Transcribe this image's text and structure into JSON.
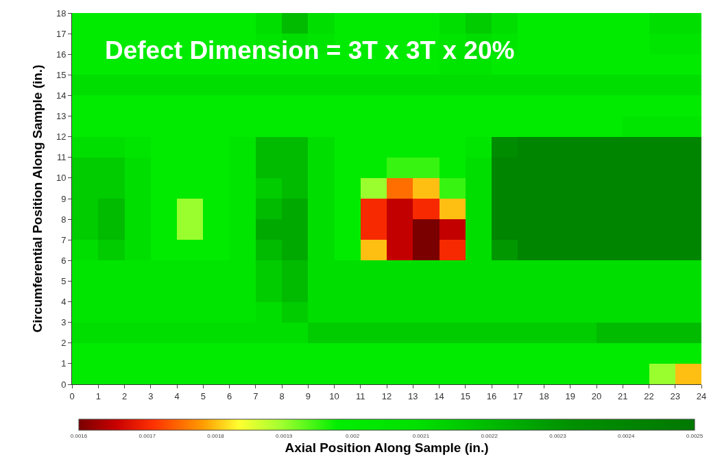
{
  "chart_data": {
    "type": "heatmap",
    "xlabel": "Axial Position Along Sample (in.)",
    "ylabel": "Circumferential Position Along Sample (in.)",
    "annotations": [
      "Defect Dimension = 3T x 3T x 20%"
    ],
    "xlim": [
      0,
      24
    ],
    "ylim": [
      0,
      18
    ],
    "xticks": [
      0,
      1,
      2,
      3,
      4,
      5,
      6,
      7,
      8,
      9,
      10,
      11,
      12,
      13,
      14,
      15,
      16,
      17,
      18,
      19,
      20,
      21,
      22,
      23,
      24
    ],
    "yticks": [
      0,
      1,
      2,
      3,
      4,
      5,
      6,
      7,
      8,
      9,
      10,
      11,
      12,
      13,
      14,
      15,
      16,
      17,
      18
    ],
    "clim": [
      0.0016,
      0.0025
    ],
    "cticks": [
      0.0016,
      0.0017,
      0.0018,
      0.0019,
      0.002,
      0.0021,
      0.0022,
      0.0023,
      0.0024,
      0.0025
    ],
    "cells": [
      [
        0.002,
        0.002,
        0.002,
        0.002,
        0.002,
        0.002,
        0.002,
        0.0021,
        0.0022,
        0.0021,
        0.002,
        0.002,
        0.002,
        0.002,
        0.0021,
        0.00215,
        0.0021,
        0.002,
        0.002,
        0.002,
        0.002,
        0.002,
        0.0021,
        0.0021
      ],
      [
        0.002,
        0.002,
        0.002,
        0.002,
        0.002,
        0.002,
        0.002,
        0.00205,
        0.0021,
        0.00205,
        0.002,
        0.002,
        0.002,
        0.002,
        0.00205,
        0.0021,
        0.00205,
        0.002,
        0.002,
        0.002,
        0.002,
        0.002,
        0.00205,
        0.00205
      ],
      [
        0.002,
        0.002,
        0.002,
        0.002,
        0.002,
        0.002,
        0.002,
        0.002,
        0.002,
        0.002,
        0.002,
        0.002,
        0.002,
        0.002,
        0.00205,
        0.00205,
        0.002,
        0.002,
        0.002,
        0.002,
        0.002,
        0.002,
        0.002,
        0.002
      ],
      [
        0.0021,
        0.0021,
        0.0021,
        0.0021,
        0.0021,
        0.0021,
        0.0021,
        0.0021,
        0.0021,
        0.0021,
        0.0021,
        0.0021,
        0.0021,
        0.0021,
        0.0021,
        0.0021,
        0.0021,
        0.0021,
        0.0021,
        0.0021,
        0.0021,
        0.0021,
        0.0021,
        0.0021
      ],
      [
        0.002,
        0.002,
        0.002,
        0.002,
        0.002,
        0.002,
        0.002,
        0.002,
        0.002,
        0.002,
        0.002,
        0.002,
        0.002,
        0.002,
        0.002,
        0.002,
        0.002,
        0.002,
        0.002,
        0.002,
        0.002,
        0.002,
        0.002,
        0.002
      ],
      [
        0.002,
        0.002,
        0.002,
        0.002,
        0.002,
        0.002,
        0.002,
        0.002,
        0.002,
        0.002,
        0.002,
        0.002,
        0.002,
        0.002,
        0.002,
        0.002,
        0.002,
        0.002,
        0.002,
        0.002,
        0.002,
        0.00205,
        0.00205,
        0.00205
      ],
      [
        0.0021,
        0.0021,
        0.00205,
        0.002,
        0.002,
        0.002,
        0.00205,
        0.0022,
        0.0022,
        0.0021,
        0.002,
        0.002,
        0.002,
        0.002,
        0.002,
        0.00205,
        0.00235,
        0.0024,
        0.0024,
        0.0024,
        0.0024,
        0.0024,
        0.0024,
        0.0024
      ],
      [
        0.00215,
        0.00215,
        0.0021,
        0.002,
        0.002,
        0.002,
        0.00205,
        0.0022,
        0.0022,
        0.0021,
        0.002,
        0.002,
        0.00195,
        0.00195,
        0.002,
        0.0021,
        0.0024,
        0.0024,
        0.0024,
        0.0024,
        0.0024,
        0.0024,
        0.0024,
        0.0024
      ],
      [
        0.00215,
        0.00215,
        0.0021,
        0.002,
        0.002,
        0.002,
        0.00205,
        0.00215,
        0.0022,
        0.0021,
        0.002,
        0.0019,
        0.00175,
        0.0018,
        0.00195,
        0.0021,
        0.0024,
        0.0024,
        0.0024,
        0.0024,
        0.0024,
        0.0024,
        0.0024,
        0.0024
      ],
      [
        0.00215,
        0.0022,
        0.0021,
        0.002,
        0.0019,
        0.002,
        0.00205,
        0.0022,
        0.00225,
        0.0021,
        0.002,
        0.0017,
        0.00165,
        0.0017,
        0.0018,
        0.0021,
        0.0024,
        0.0024,
        0.0024,
        0.0024,
        0.0024,
        0.0024,
        0.0024,
        0.0024
      ],
      [
        0.00215,
        0.0022,
        0.0021,
        0.002,
        0.0019,
        0.002,
        0.00205,
        0.00225,
        0.00225,
        0.0021,
        0.002,
        0.0017,
        0.00165,
        0.0016,
        0.00165,
        0.0021,
        0.0024,
        0.0024,
        0.0024,
        0.0024,
        0.0024,
        0.0024,
        0.0024,
        0.0024
      ],
      [
        0.0021,
        0.00215,
        0.0021,
        0.002,
        0.002,
        0.002,
        0.00205,
        0.0022,
        0.00225,
        0.0021,
        0.002,
        0.0018,
        0.00165,
        0.0016,
        0.0017,
        0.0021,
        0.0023,
        0.0024,
        0.0024,
        0.0024,
        0.0024,
        0.0024,
        0.0024,
        0.0024
      ],
      [
        0.00205,
        0.00205,
        0.00205,
        0.00205,
        0.00205,
        0.00205,
        0.00205,
        0.00215,
        0.0022,
        0.0021,
        0.0021,
        0.0021,
        0.0021,
        0.0021,
        0.0021,
        0.0021,
        0.0021,
        0.0021,
        0.0021,
        0.0021,
        0.0021,
        0.0021,
        0.0021,
        0.0021
      ],
      [
        0.00205,
        0.00205,
        0.00205,
        0.00205,
        0.00205,
        0.00205,
        0.00205,
        0.00215,
        0.0022,
        0.0021,
        0.0021,
        0.0021,
        0.0021,
        0.0021,
        0.0021,
        0.0021,
        0.0021,
        0.0021,
        0.0021,
        0.0021,
        0.0021,
        0.0021,
        0.0021,
        0.0021
      ],
      [
        0.00205,
        0.00205,
        0.00205,
        0.00205,
        0.00205,
        0.00205,
        0.00205,
        0.0021,
        0.00215,
        0.0021,
        0.0021,
        0.0021,
        0.0021,
        0.0021,
        0.0021,
        0.0021,
        0.0021,
        0.0021,
        0.0021,
        0.0021,
        0.0021,
        0.0021,
        0.0021,
        0.0021
      ],
      [
        0.0021,
        0.0021,
        0.0021,
        0.0021,
        0.0021,
        0.0021,
        0.0021,
        0.0021,
        0.0021,
        0.00215,
        0.00215,
        0.00215,
        0.00215,
        0.00215,
        0.00215,
        0.00215,
        0.00215,
        0.00215,
        0.00215,
        0.00215,
        0.0022,
        0.0022,
        0.0022,
        0.0022
      ],
      [
        0.002,
        0.002,
        0.002,
        0.002,
        0.002,
        0.002,
        0.002,
        0.002,
        0.002,
        0.002,
        0.002,
        0.002,
        0.002,
        0.002,
        0.002,
        0.002,
        0.002,
        0.002,
        0.002,
        0.002,
        0.002,
        0.002,
        0.002,
        0.002
      ],
      [
        0.002,
        0.002,
        0.002,
        0.002,
        0.002,
        0.002,
        0.002,
        0.002,
        0.002,
        0.002,
        0.002,
        0.002,
        0.002,
        0.002,
        0.002,
        0.002,
        0.002,
        0.002,
        0.002,
        0.002,
        0.002,
        0.002,
        0.0019,
        0.0018
      ]
    ]
  }
}
